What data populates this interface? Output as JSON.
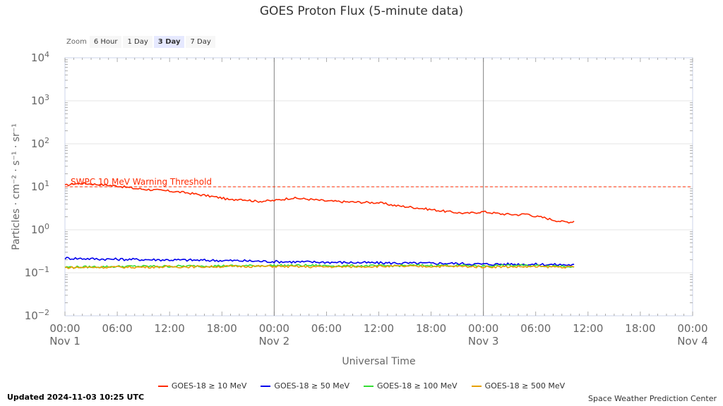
{
  "colors": {
    "p10": "#ff2a00",
    "p50": "#0000ee",
    "p100": "#33dd33",
    "p500": "#e6a000",
    "threshold": "#ff2a00",
    "grid": "#e6e6e6",
    "axis": "#ccd6eb"
  },
  "zoom": {
    "label": "Zoom",
    "buttons": [
      "6 Hour",
      "1 Day",
      "3 Day",
      "7 Day"
    ],
    "active": "3 Day"
  },
  "chart_data": {
    "type": "line",
    "title": "GOES Proton Flux (5-minute data)",
    "xlabel": "Universal Time",
    "ylabel": "Particles · cm⁻² · s⁻¹ · sr⁻¹",
    "y_scale": "log",
    "ylim_log10": [
      -2,
      4
    ],
    "y_ticks": [
      {
        "log": 4,
        "base": "10",
        "exp": "4"
      },
      {
        "log": 3,
        "base": "10",
        "exp": "3"
      },
      {
        "log": 2,
        "base": "10",
        "exp": "2"
      },
      {
        "log": 1,
        "base": "10",
        "exp": "1"
      },
      {
        "log": 0,
        "base": "10",
        "exp": "0"
      },
      {
        "log": -1,
        "base": "10",
        "exp": "−1"
      },
      {
        "log": -2,
        "base": "10",
        "exp": "−2"
      }
    ],
    "xlim_hours": [
      0,
      72
    ],
    "x_ticks": [
      {
        "h": 0,
        "time": "00:00",
        "date": "Nov 1"
      },
      {
        "h": 6,
        "time": "06:00",
        "date": ""
      },
      {
        "h": 12,
        "time": "12:00",
        "date": ""
      },
      {
        "h": 18,
        "time": "18:00",
        "date": ""
      },
      {
        "h": 24,
        "time": "00:00",
        "date": "Nov 2"
      },
      {
        "h": 30,
        "time": "06:00",
        "date": ""
      },
      {
        "h": 36,
        "time": "12:00",
        "date": ""
      },
      {
        "h": 42,
        "time": "18:00",
        "date": ""
      },
      {
        "h": 48,
        "time": "00:00",
        "date": "Nov 3"
      },
      {
        "h": 54,
        "time": "06:00",
        "date": ""
      },
      {
        "h": 60,
        "time": "12:00",
        "date": ""
      },
      {
        "h": 66,
        "time": "18:00",
        "date": ""
      },
      {
        "h": 72,
        "time": "00:00",
        "date": "Nov 4"
      }
    ],
    "day_lines_hours": [
      24,
      48
    ],
    "threshold": {
      "value": 10,
      "label": "SWPC 10 MeV Warning Threshold"
    },
    "series": [
      {
        "name": "GOES-18 ≥ 10 MeV",
        "color_key": "p10",
        "x": [
          0,
          1,
          2,
          4,
          6,
          8,
          10,
          12,
          14,
          16,
          18,
          19,
          20,
          22,
          24,
          26,
          28,
          30,
          32,
          34,
          36,
          38,
          40,
          42,
          44,
          46,
          48,
          50,
          52,
          53,
          54,
          55,
          56,
          57,
          58,
          58.5
        ],
        "log10_values": [
          1.03,
          1.07,
          1.08,
          1.05,
          1.02,
          0.96,
          0.93,
          0.9,
          0.86,
          0.8,
          0.74,
          0.69,
          0.72,
          0.66,
          0.68,
          0.74,
          0.71,
          0.67,
          0.65,
          0.64,
          0.63,
          0.56,
          0.52,
          0.47,
          0.42,
          0.38,
          0.42,
          0.37,
          0.35,
          0.37,
          0.31,
          0.28,
          0.23,
          0.19,
          0.18,
          0.21
        ]
      },
      {
        "name": "GOES-18 ≥ 50 MeV",
        "color_key": "p50",
        "x": [
          0,
          4,
          8,
          12,
          16,
          20,
          24,
          28,
          32,
          36,
          40,
          44,
          48,
          52,
          56,
          58.5
        ],
        "log10_values": [
          -0.66,
          -0.68,
          -0.69,
          -0.7,
          -0.71,
          -0.72,
          -0.74,
          -0.75,
          -0.76,
          -0.77,
          -0.78,
          -0.78,
          -0.8,
          -0.8,
          -0.81,
          -0.82
        ]
      },
      {
        "name": "GOES-18 ≥ 100 MeV",
        "color_key": "p100",
        "x": [
          0,
          4,
          8,
          12,
          16,
          20,
          24,
          28,
          32,
          36,
          40,
          44,
          48,
          52,
          56,
          58.5
        ],
        "log10_values": [
          -0.87,
          -0.86,
          -0.85,
          -0.85,
          -0.84,
          -0.84,
          -0.83,
          -0.83,
          -0.84,
          -0.84,
          -0.83,
          -0.83,
          -0.84,
          -0.83,
          -0.84,
          -0.85
        ]
      },
      {
        "name": "GOES-18 ≥ 500 MeV",
        "color_key": "p500",
        "x": [
          0,
          4,
          8,
          12,
          16,
          20,
          24,
          28,
          32,
          36,
          40,
          44,
          48,
          52,
          56,
          58.5
        ],
        "log10_values": [
          -0.88,
          -0.87,
          -0.87,
          -0.86,
          -0.86,
          -0.85,
          -0.85,
          -0.86,
          -0.86,
          -0.85,
          -0.85,
          -0.85,
          -0.86,
          -0.86,
          -0.86,
          -0.87
        ]
      }
    ]
  },
  "legend": [
    {
      "label": "GOES-18 ≥ 10 MeV",
      "color_key": "p10"
    },
    {
      "label": "GOES-18 ≥ 50 MeV",
      "color_key": "p50"
    },
    {
      "label": "GOES-18 ≥ 100 MeV",
      "color_key": "p100"
    },
    {
      "label": "GOES-18 ≥ 500 MeV",
      "color_key": "p500"
    }
  ],
  "footer": {
    "updated": "Updated 2024-11-03 10:25 UTC",
    "credit": "Space Weather Prediction Center"
  }
}
